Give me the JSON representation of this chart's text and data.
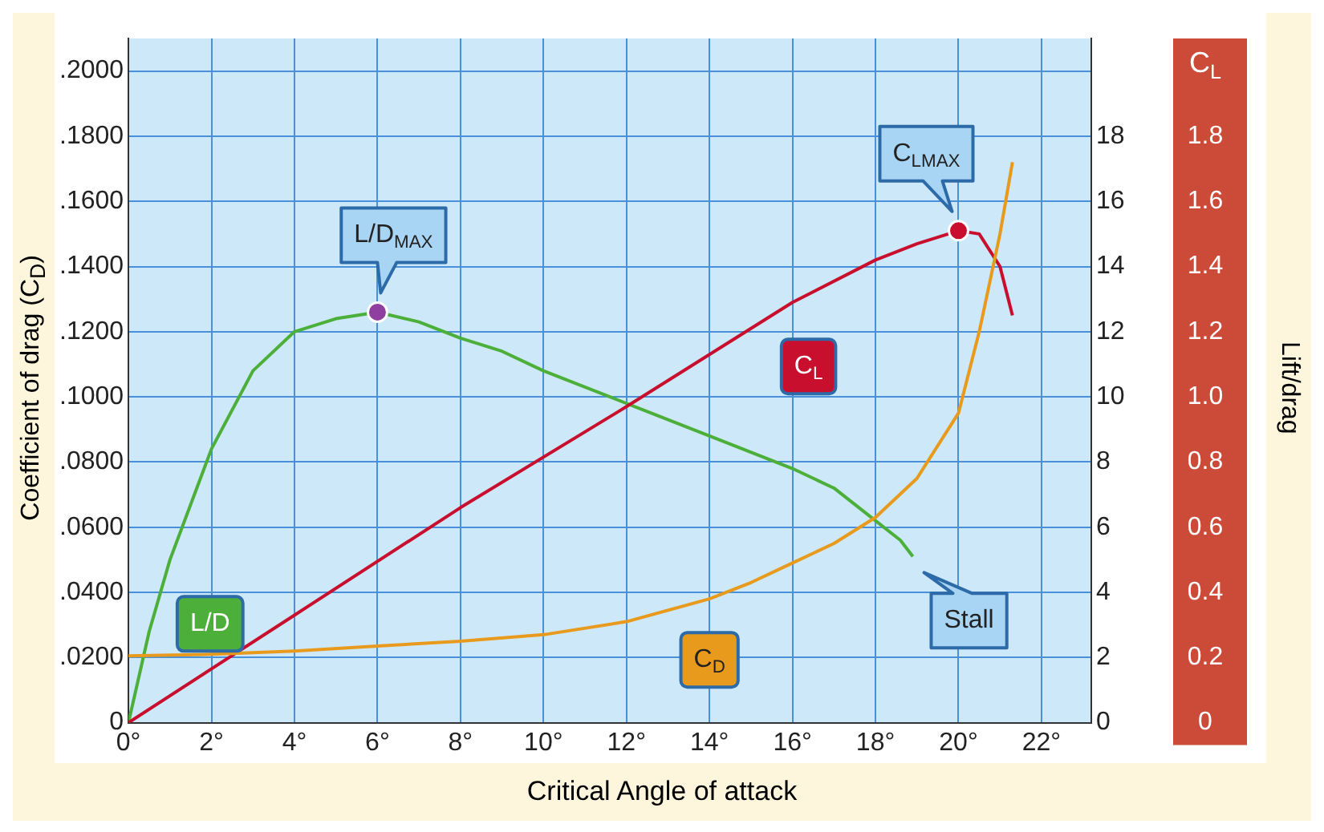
{
  "chart_data": {
    "type": "line",
    "xlabel": "Critical Angle of attack",
    "ylabel": "Coefficient of drag (C$_{D}$)",
    "y2label": "C$_{L}$",
    "y3label": "Lift/drag",
    "xlim": [
      0,
      23.2
    ],
    "xticks": [
      {
        "value": 0,
        "label": "0°"
      },
      {
        "value": 2,
        "label": "2°"
      },
      {
        "value": 4,
        "label": "4°"
      },
      {
        "value": 6,
        "label": "6°"
      },
      {
        "value": 8,
        "label": "8°"
      },
      {
        "value": 10,
        "label": "10°"
      },
      {
        "value": 12,
        "label": "12°"
      },
      {
        "value": 14,
        "label": "14°"
      },
      {
        "value": 16,
        "label": "16°"
      },
      {
        "value": 18,
        "label": "18°"
      },
      {
        "value": 20,
        "label": "20°"
      },
      {
        "value": 22,
        "label": "22°"
      }
    ],
    "ylim": [
      0,
      0.21
    ],
    "yticks": [
      0,
      {
        "value": 0.02,
        "label": ".0200"
      },
      {
        "value": 0.04,
        "label": ".0400"
      },
      {
        "value": 0.06,
        "label": ".0600"
      },
      {
        "value": 0.08,
        "label": ".0800"
      },
      {
        "value": 0.1,
        "label": ".1000"
      },
      {
        "value": 0.12,
        "label": ".1200"
      },
      {
        "value": 0.14,
        "label": ".1400"
      },
      {
        "value": 0.16,
        "label": ".1600"
      },
      {
        "value": 0.18,
        "label": ".1800"
      },
      {
        "value": 0.2,
        "label": ".2000"
      }
    ],
    "y2lim": [
      0,
      2.1
    ],
    "y2ticks": [
      0,
      0.2,
      0.4,
      0.6,
      0.8,
      {
        "value": 1,
        "label": "1.0"
      },
      1.2,
      1.4,
      1.6,
      1.8
    ],
    "y3lim": [
      0,
      21
    ],
    "y3ticks": [
      0,
      2,
      4,
      6,
      8,
      10,
      12,
      14,
      16,
      18
    ],
    "grid": true,
    "marker": "none",
    "series": [
      {
        "name": "C$_{D}$",
        "color": "#e89a1c",
        "axis": "y",
        "x": [
          0,
          2,
          4,
          6,
          8,
          10,
          12,
          14,
          15,
          16,
          17,
          18,
          19,
          20,
          20.5,
          21,
          21.3
        ],
        "values": [
          0.0205,
          0.021,
          0.022,
          0.0235,
          0.025,
          0.027,
          0.031,
          0.038,
          0.043,
          0.049,
          0.055,
          0.063,
          0.075,
          0.095,
          0.12,
          0.15,
          0.172
        ]
      },
      {
        "name": "C$_{L}$",
        "color": "#c8102e",
        "axis": "y2",
        "x": [
          0,
          4,
          8,
          12,
          16,
          18,
          19,
          20,
          20.5,
          21,
          21.3
        ],
        "values": [
          0,
          0.33,
          0.66,
          0.97,
          1.29,
          1.42,
          1.47,
          1.51,
          1.5,
          1.4,
          1.25
        ]
      },
      {
        "name": "L/D",
        "color": "#4caf3a",
        "axis": "y3",
        "x": [
          0,
          0.5,
          1,
          2,
          3,
          4,
          5,
          6,
          7,
          8,
          9,
          10,
          12,
          14,
          16,
          17,
          18,
          18.6,
          18.9
        ],
        "values": [
          0,
          2.8,
          5,
          8.4,
          10.8,
          12,
          12.4,
          12.6,
          12.3,
          11.8,
          11.4,
          10.8,
          9.8,
          8.8,
          7.8,
          7.2,
          6.2,
          5.6,
          5.1
        ]
      }
    ],
    "annotations": [
      "L/D$_{MAX}$",
      "C$_{LMAX}$",
      "Stall"
    ]
  }
}
